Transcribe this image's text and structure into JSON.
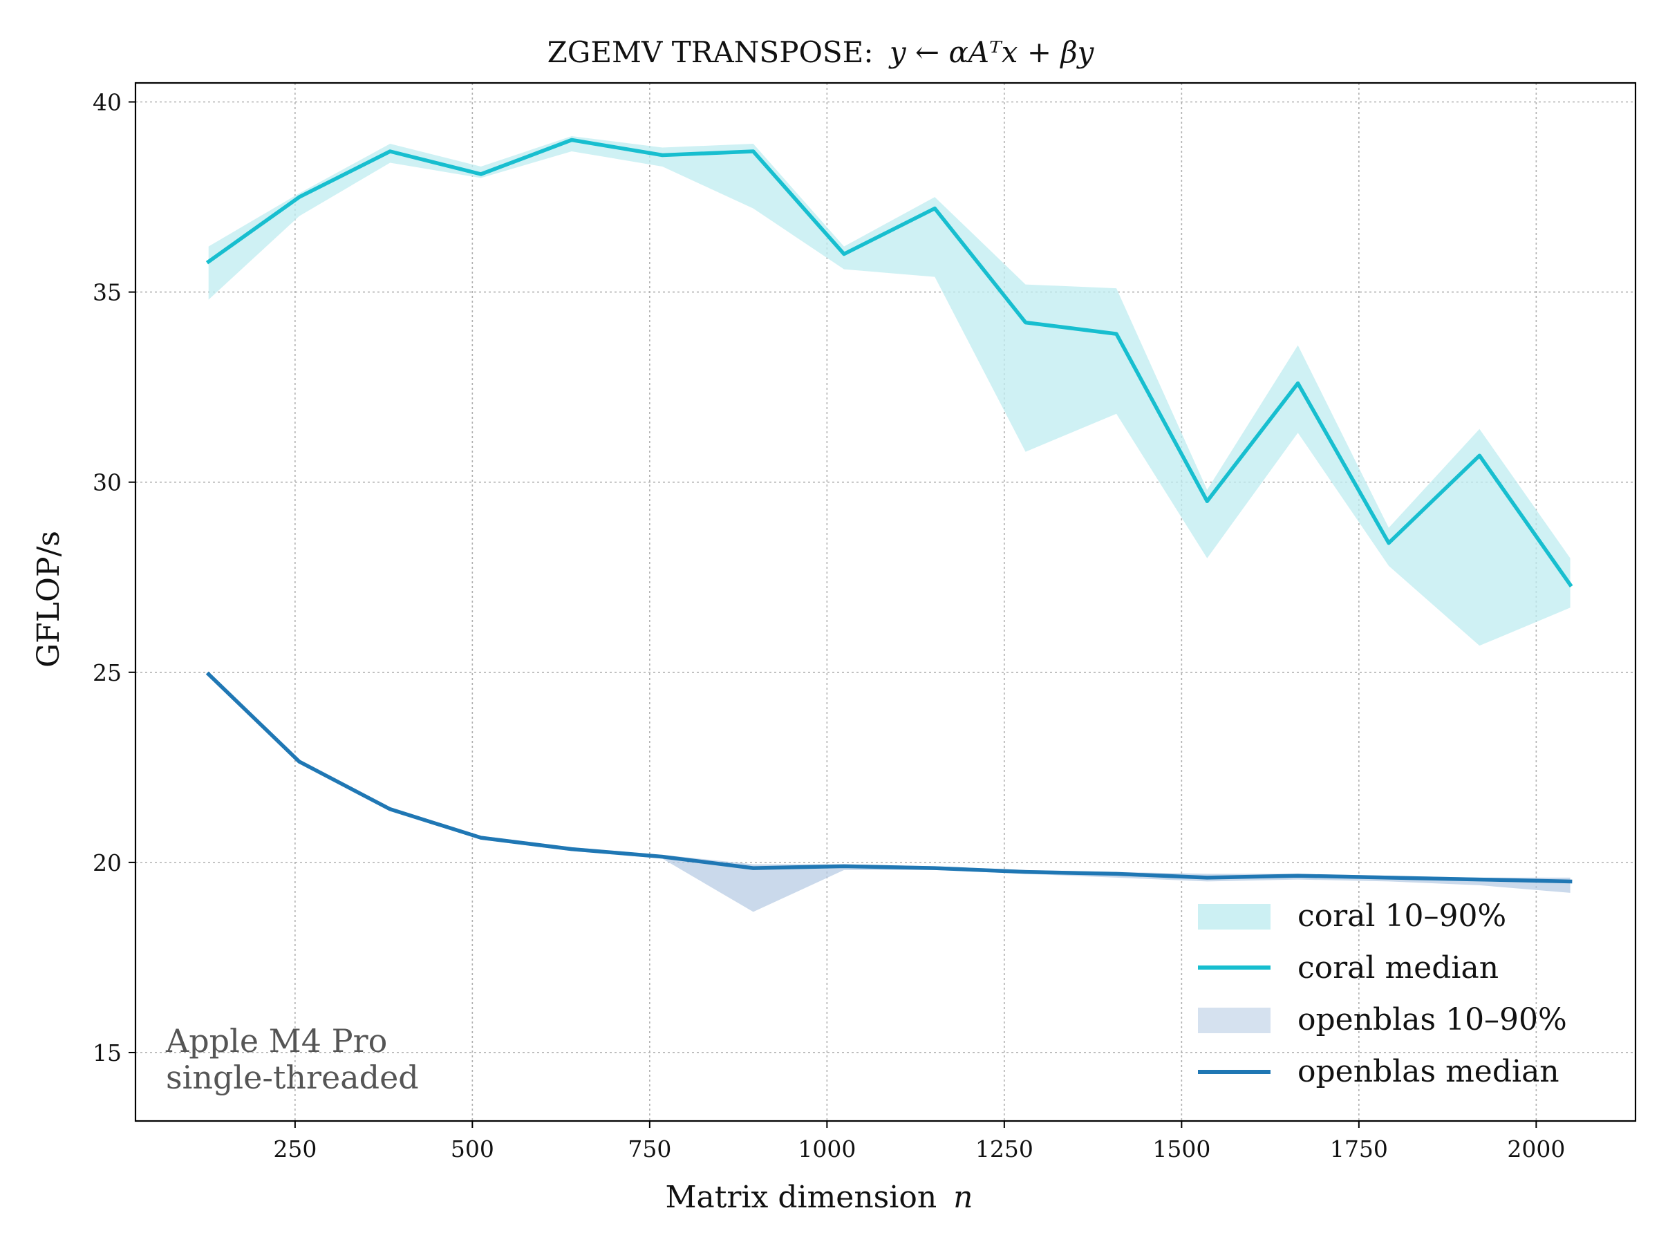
{
  "chart_data": {
    "type": "line",
    "title_prefix": "ZGEMV TRANSPOSE:",
    "title_formula": "y ← αAᵀx + βy",
    "xlabel_prefix": "Matrix dimension",
    "xlabel_var": "n",
    "ylabel": "GFLOP/s",
    "xlim": [
      25,
      2140
    ],
    "ylim": [
      13.2,
      40.5
    ],
    "xticks": [
      250,
      500,
      750,
      1000,
      1250,
      1500,
      1750,
      2000
    ],
    "yticks": [
      15,
      20,
      25,
      30,
      35,
      40
    ],
    "grid": true,
    "legend_position": "lower-right",
    "x": [
      128,
      256,
      384,
      512,
      640,
      768,
      896,
      1024,
      1152,
      1280,
      1408,
      1536,
      1664,
      1792,
      1920,
      2048
    ],
    "series": [
      {
        "name": "coral median",
        "band_name": "coral 10–90%",
        "color": "#17becf",
        "band_color": "#bfecf0",
        "median": [
          35.8,
          37.5,
          38.7,
          38.1,
          39.0,
          38.6,
          38.7,
          36.0,
          37.2,
          34.2,
          33.9,
          29.5,
          32.6,
          28.4,
          30.7,
          27.3
        ],
        "p10": [
          34.8,
          37.0,
          38.4,
          38.0,
          38.7,
          38.3,
          37.2,
          35.6,
          35.4,
          30.8,
          31.8,
          28.0,
          31.3,
          27.8,
          25.7,
          26.7
        ],
        "p90": [
          36.2,
          37.6,
          38.9,
          38.3,
          39.1,
          38.8,
          38.9,
          36.2,
          37.5,
          35.2,
          35.1,
          29.8,
          33.6,
          28.8,
          31.4,
          28.0
        ]
      },
      {
        "name": "openblas median",
        "band_name": "openblas 10–90%",
        "color": "#1f77b4",
        "band_color": "#b3c9e2",
        "median": [
          24.95,
          22.65,
          21.4,
          20.65,
          20.35,
          20.15,
          19.85,
          19.9,
          19.85,
          19.75,
          19.7,
          19.6,
          19.65,
          19.6,
          19.55,
          19.5
        ],
        "p10": [
          24.9,
          22.6,
          21.35,
          20.6,
          20.3,
          20.1,
          18.7,
          19.8,
          19.8,
          19.7,
          19.6,
          19.5,
          19.55,
          19.5,
          19.4,
          19.2
        ],
        "p90": [
          25.0,
          22.7,
          21.45,
          20.7,
          20.4,
          20.2,
          19.95,
          19.95,
          19.9,
          19.8,
          19.75,
          19.7,
          19.7,
          19.65,
          19.6,
          19.6
        ]
      }
    ],
    "annotation": [
      "Apple M4 Pro",
      "single-threaded"
    ]
  }
}
